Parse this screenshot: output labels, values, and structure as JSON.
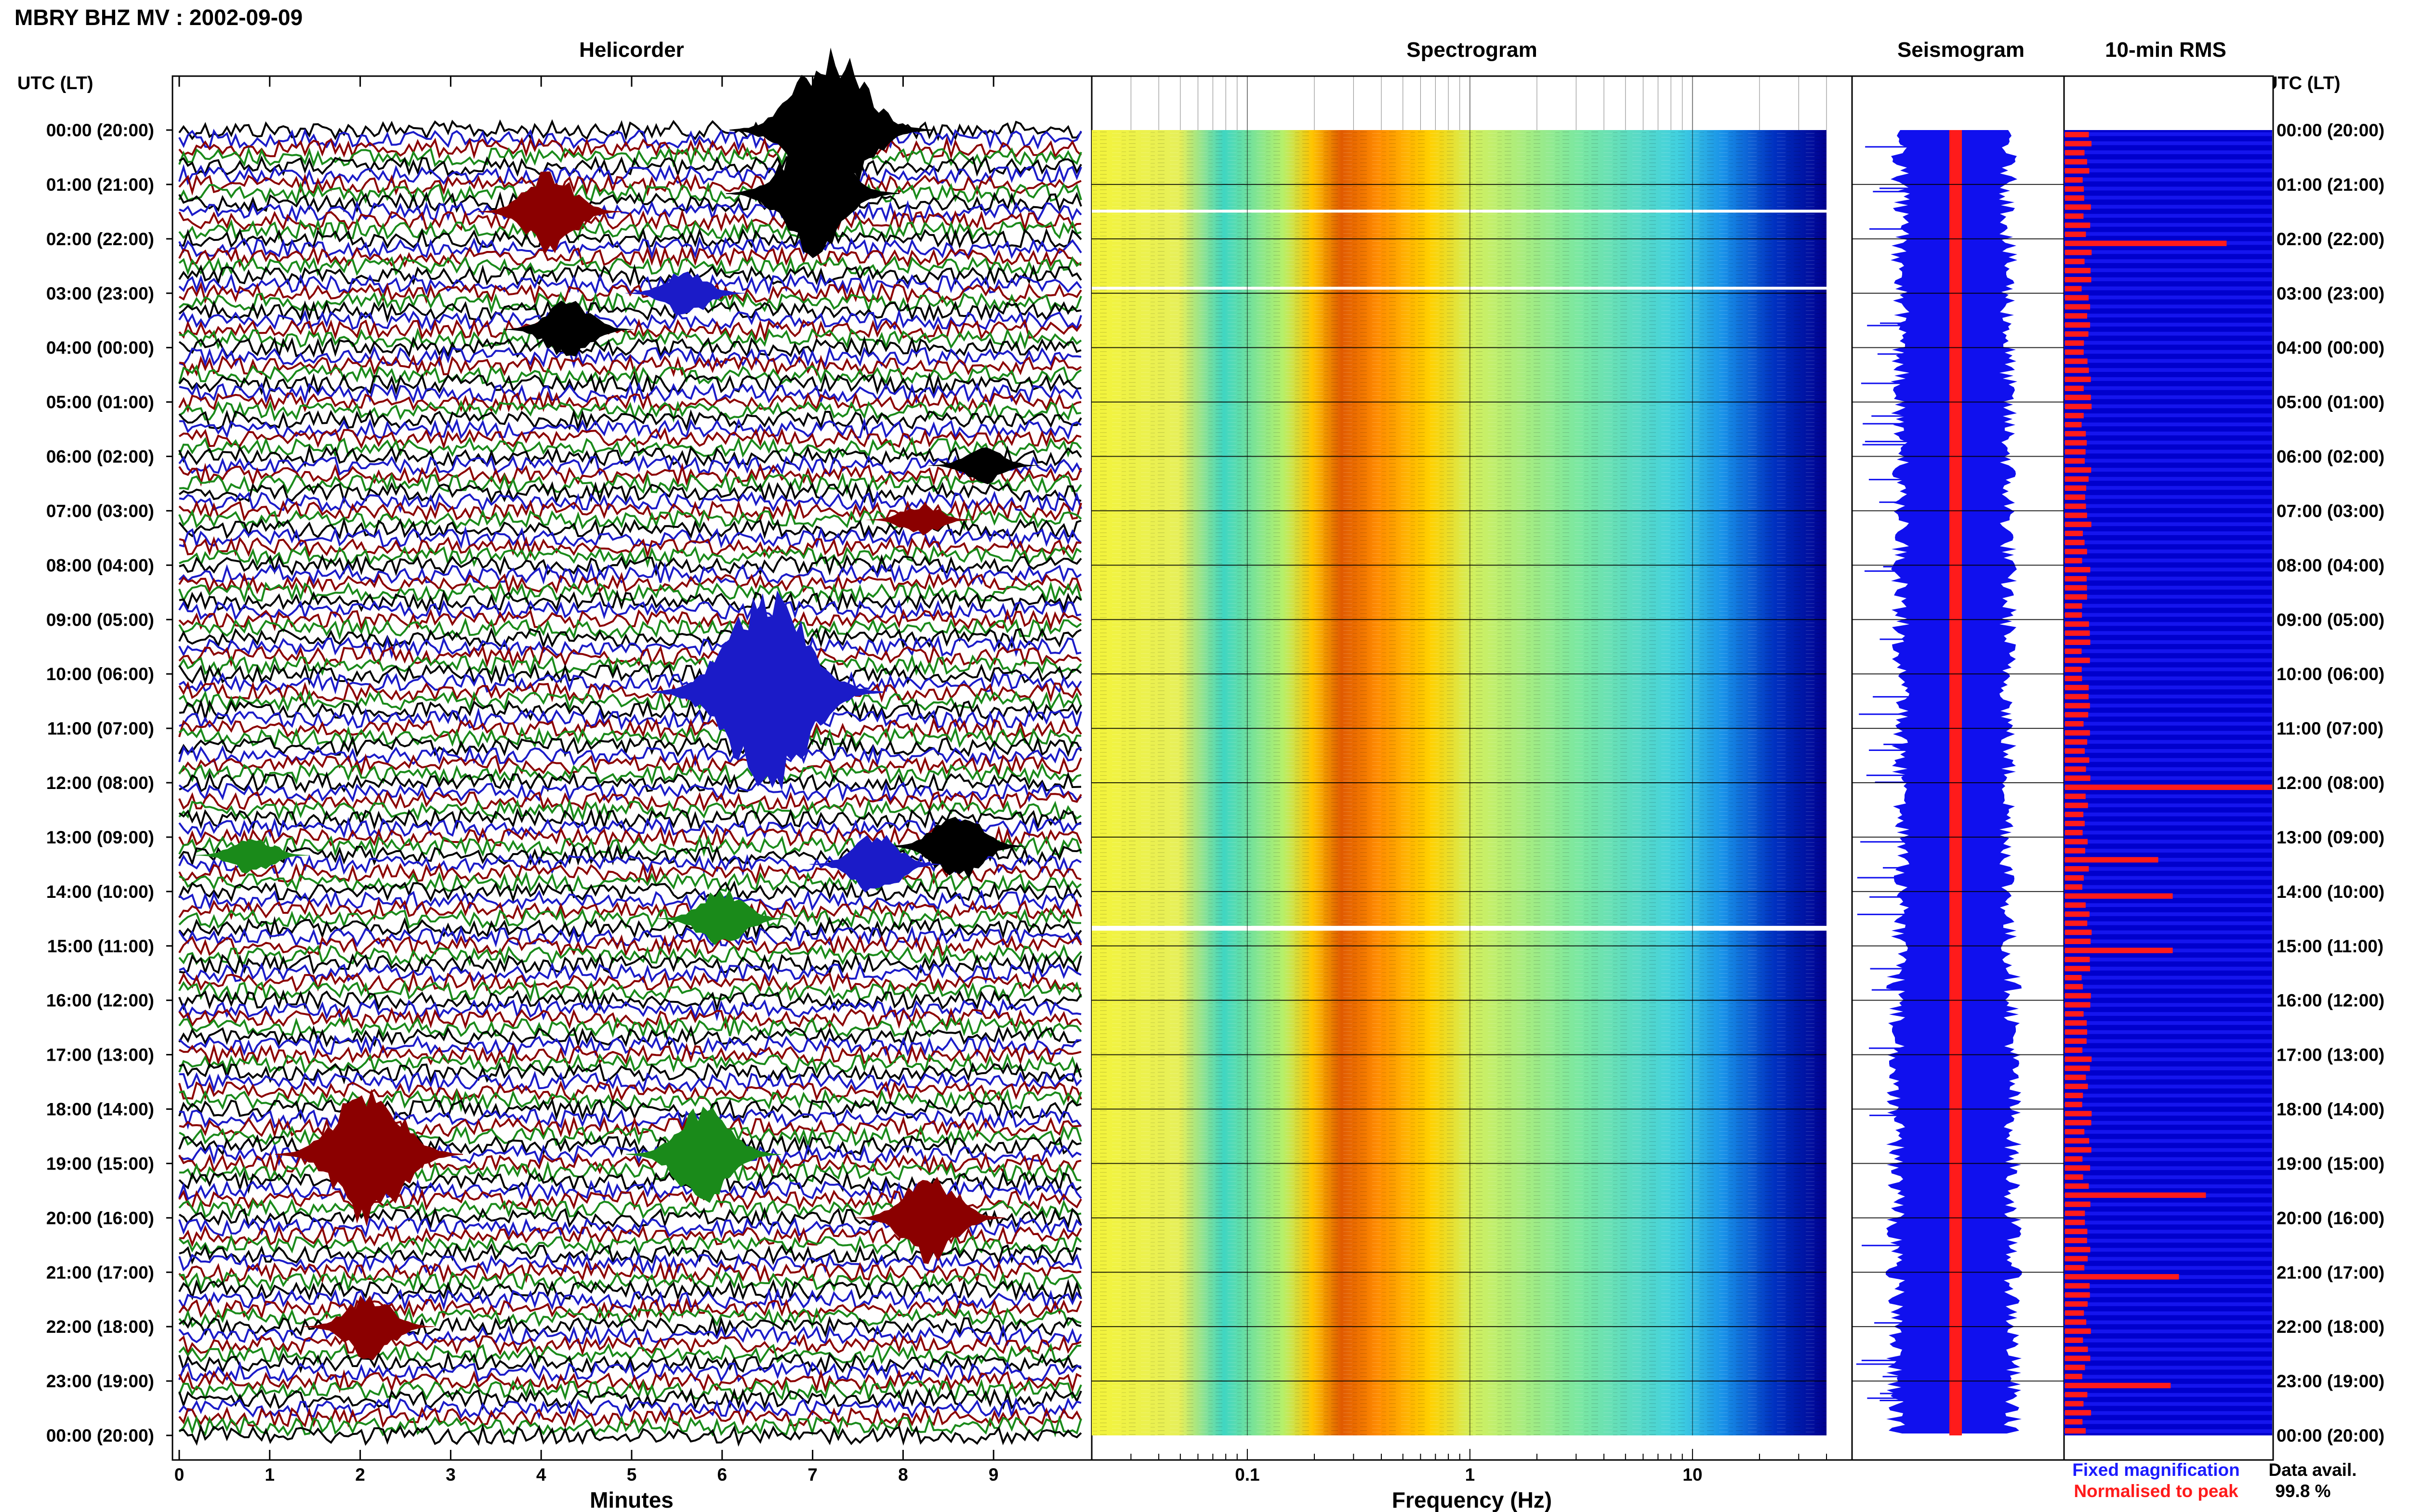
{
  "header": {
    "title": "MBRY BHZ MV : 2002-09-09",
    "utc_label": "UTC (LT)"
  },
  "panels": {
    "helicorder_title": "Helicorder",
    "spectrogram_title": "Spectrogram",
    "seismogram_title": "Seismogram",
    "rms_title": "10-min RMS"
  },
  "time_labels": [
    "00:00 (20:00)",
    "01:00 (21:00)",
    "02:00 (22:00)",
    "03:00 (23:00)",
    "04:00 (00:00)",
    "05:00 (01:00)",
    "06:00 (02:00)",
    "07:00 (03:00)",
    "08:00 (04:00)",
    "09:00 (05:00)",
    "10:00 (06:00)",
    "11:00 (07:00)",
    "12:00 (08:00)",
    "13:00 (09:00)",
    "14:00 (10:00)",
    "15:00 (11:00)",
    "16:00 (12:00)",
    "17:00 (13:00)",
    "18:00 (14:00)",
    "19:00 (15:00)",
    "20:00 (16:00)",
    "21:00 (17:00)",
    "22:00 (18:00)",
    "23:00 (19:00)",
    "00:00 (20:00)"
  ],
  "legend": {
    "fixed": "Fixed magnification",
    "normalised": "Normalised to peak",
    "fixed_color": "#1b1bff",
    "normalised_color": "#ff1b1b"
  },
  "data_availability": {
    "label": "Data avail.",
    "value": "99.8 %"
  },
  "chart_data": [
    {
      "type": "line",
      "panel": "helicorder",
      "title": "Helicorder",
      "xlabel": "Minutes",
      "x_ticks": [
        "0",
        "1",
        "2",
        "3",
        "4",
        "5",
        "6",
        "7",
        "8",
        "9"
      ],
      "xlim": [
        0,
        10
      ],
      "trace_colors": [
        "#000000",
        "#1b1bc8",
        "#8b0000",
        "#1a8a1a"
      ],
      "lines_per_hour": 6,
      "minutes_per_line": 10,
      "events": [
        {
          "time_utc": "00:00",
          "minute": 7.2,
          "color": "#000000",
          "amp": 4.0
        },
        {
          "time_utc": "01:10",
          "minute": 7.0,
          "color": "#000000",
          "amp": 3.0
        },
        {
          "time_utc": "01:30",
          "minute": 4.1,
          "color": "#8b0000",
          "amp": 2.0
        },
        {
          "time_utc": "03:00",
          "minute": 5.6,
          "color": "#1b1bc8",
          "amp": 1.2
        },
        {
          "time_utc": "03:40",
          "minute": 4.3,
          "color": "#000000",
          "amp": 1.5
        },
        {
          "time_utc": "06:10",
          "minute": 8.9,
          "color": "#000000",
          "amp": 0.9
        },
        {
          "time_utc": "07:10",
          "minute": 8.2,
          "color": "#8b0000",
          "amp": 0.8
        },
        {
          "time_utc": "10:20",
          "minute": 6.5,
          "color": "#1b1bc8",
          "amp": 5.0
        },
        {
          "time_utc": "13:10",
          "minute": 8.6,
          "color": "#000000",
          "amp": 1.8
        },
        {
          "time_utc": "13:20",
          "minute": 0.8,
          "color": "#1a8a1a",
          "amp": 1.0
        },
        {
          "time_utc": "13:30",
          "minute": 7.7,
          "color": "#1b1bc8",
          "amp": 1.6
        },
        {
          "time_utc": "14:30",
          "minute": 6.0,
          "color": "#1a8a1a",
          "amp": 1.5
        },
        {
          "time_utc": "18:50",
          "minute": 2.1,
          "color": "#8b0000",
          "amp": 3.5
        },
        {
          "time_utc": "18:50",
          "minute": 5.8,
          "color": "#1a8a1a",
          "amp": 2.4
        },
        {
          "time_utc": "20:00",
          "minute": 8.3,
          "color": "#8b0000",
          "amp": 2.2
        },
        {
          "time_utc": "22:00",
          "minute": 2.1,
          "color": "#8b0000",
          "amp": 1.6
        }
      ]
    },
    {
      "type": "heatmap",
      "panel": "spectrogram",
      "title": "Spectrogram",
      "xlabel": "Frequency (Hz)",
      "x_scale": "log",
      "xlim": [
        0.02,
        40
      ],
      "x_ticks": [
        "0.1",
        "1",
        "10"
      ],
      "x_tick_values": [
        0.1,
        1,
        10
      ],
      "colormap": [
        "#f4f43a",
        "#30d9c8",
        "#c8f56a",
        "#ffb000",
        "#d04a00",
        "#0000a0"
      ],
      "peak_frequency_band_hz": [
        0.22,
        0.5
      ],
      "data_gaps_utc": [
        "01:30",
        "02:55",
        "14:40"
      ]
    },
    {
      "type": "line",
      "panel": "seismogram",
      "title": "Seismogram",
      "series": [
        {
          "name": "Fixed magnification",
          "color": "#1b1bff"
        },
        {
          "name": "Normalised to peak",
          "color": "#ff1b1b"
        }
      ]
    },
    {
      "type": "bar",
      "panel": "rms",
      "title": "10-min RMS",
      "orientation": "horizontal",
      "bins_per_hour": 6,
      "series": [
        {
          "name": "Fixed magnification",
          "color": "#1b1bff",
          "relative_value": 1.0
        },
        {
          "name": "Normalised to peak",
          "color": "#ff1b1b"
        }
      ],
      "notable_bins": [
        {
          "time_utc": "02:00",
          "relative_rms": 0.78
        },
        {
          "time_utc": "12:00",
          "relative_rms": 1.0
        },
        {
          "time_utc": "13:20",
          "relative_rms": 0.45
        },
        {
          "time_utc": "14:00",
          "relative_rms": 0.52
        },
        {
          "time_utc": "15:00",
          "relative_rms": 0.52
        },
        {
          "time_utc": "19:30",
          "relative_rms": 0.68
        },
        {
          "time_utc": "21:00",
          "relative_rms": 0.55
        },
        {
          "time_utc": "23:00",
          "relative_rms": 0.51
        }
      ]
    }
  ]
}
